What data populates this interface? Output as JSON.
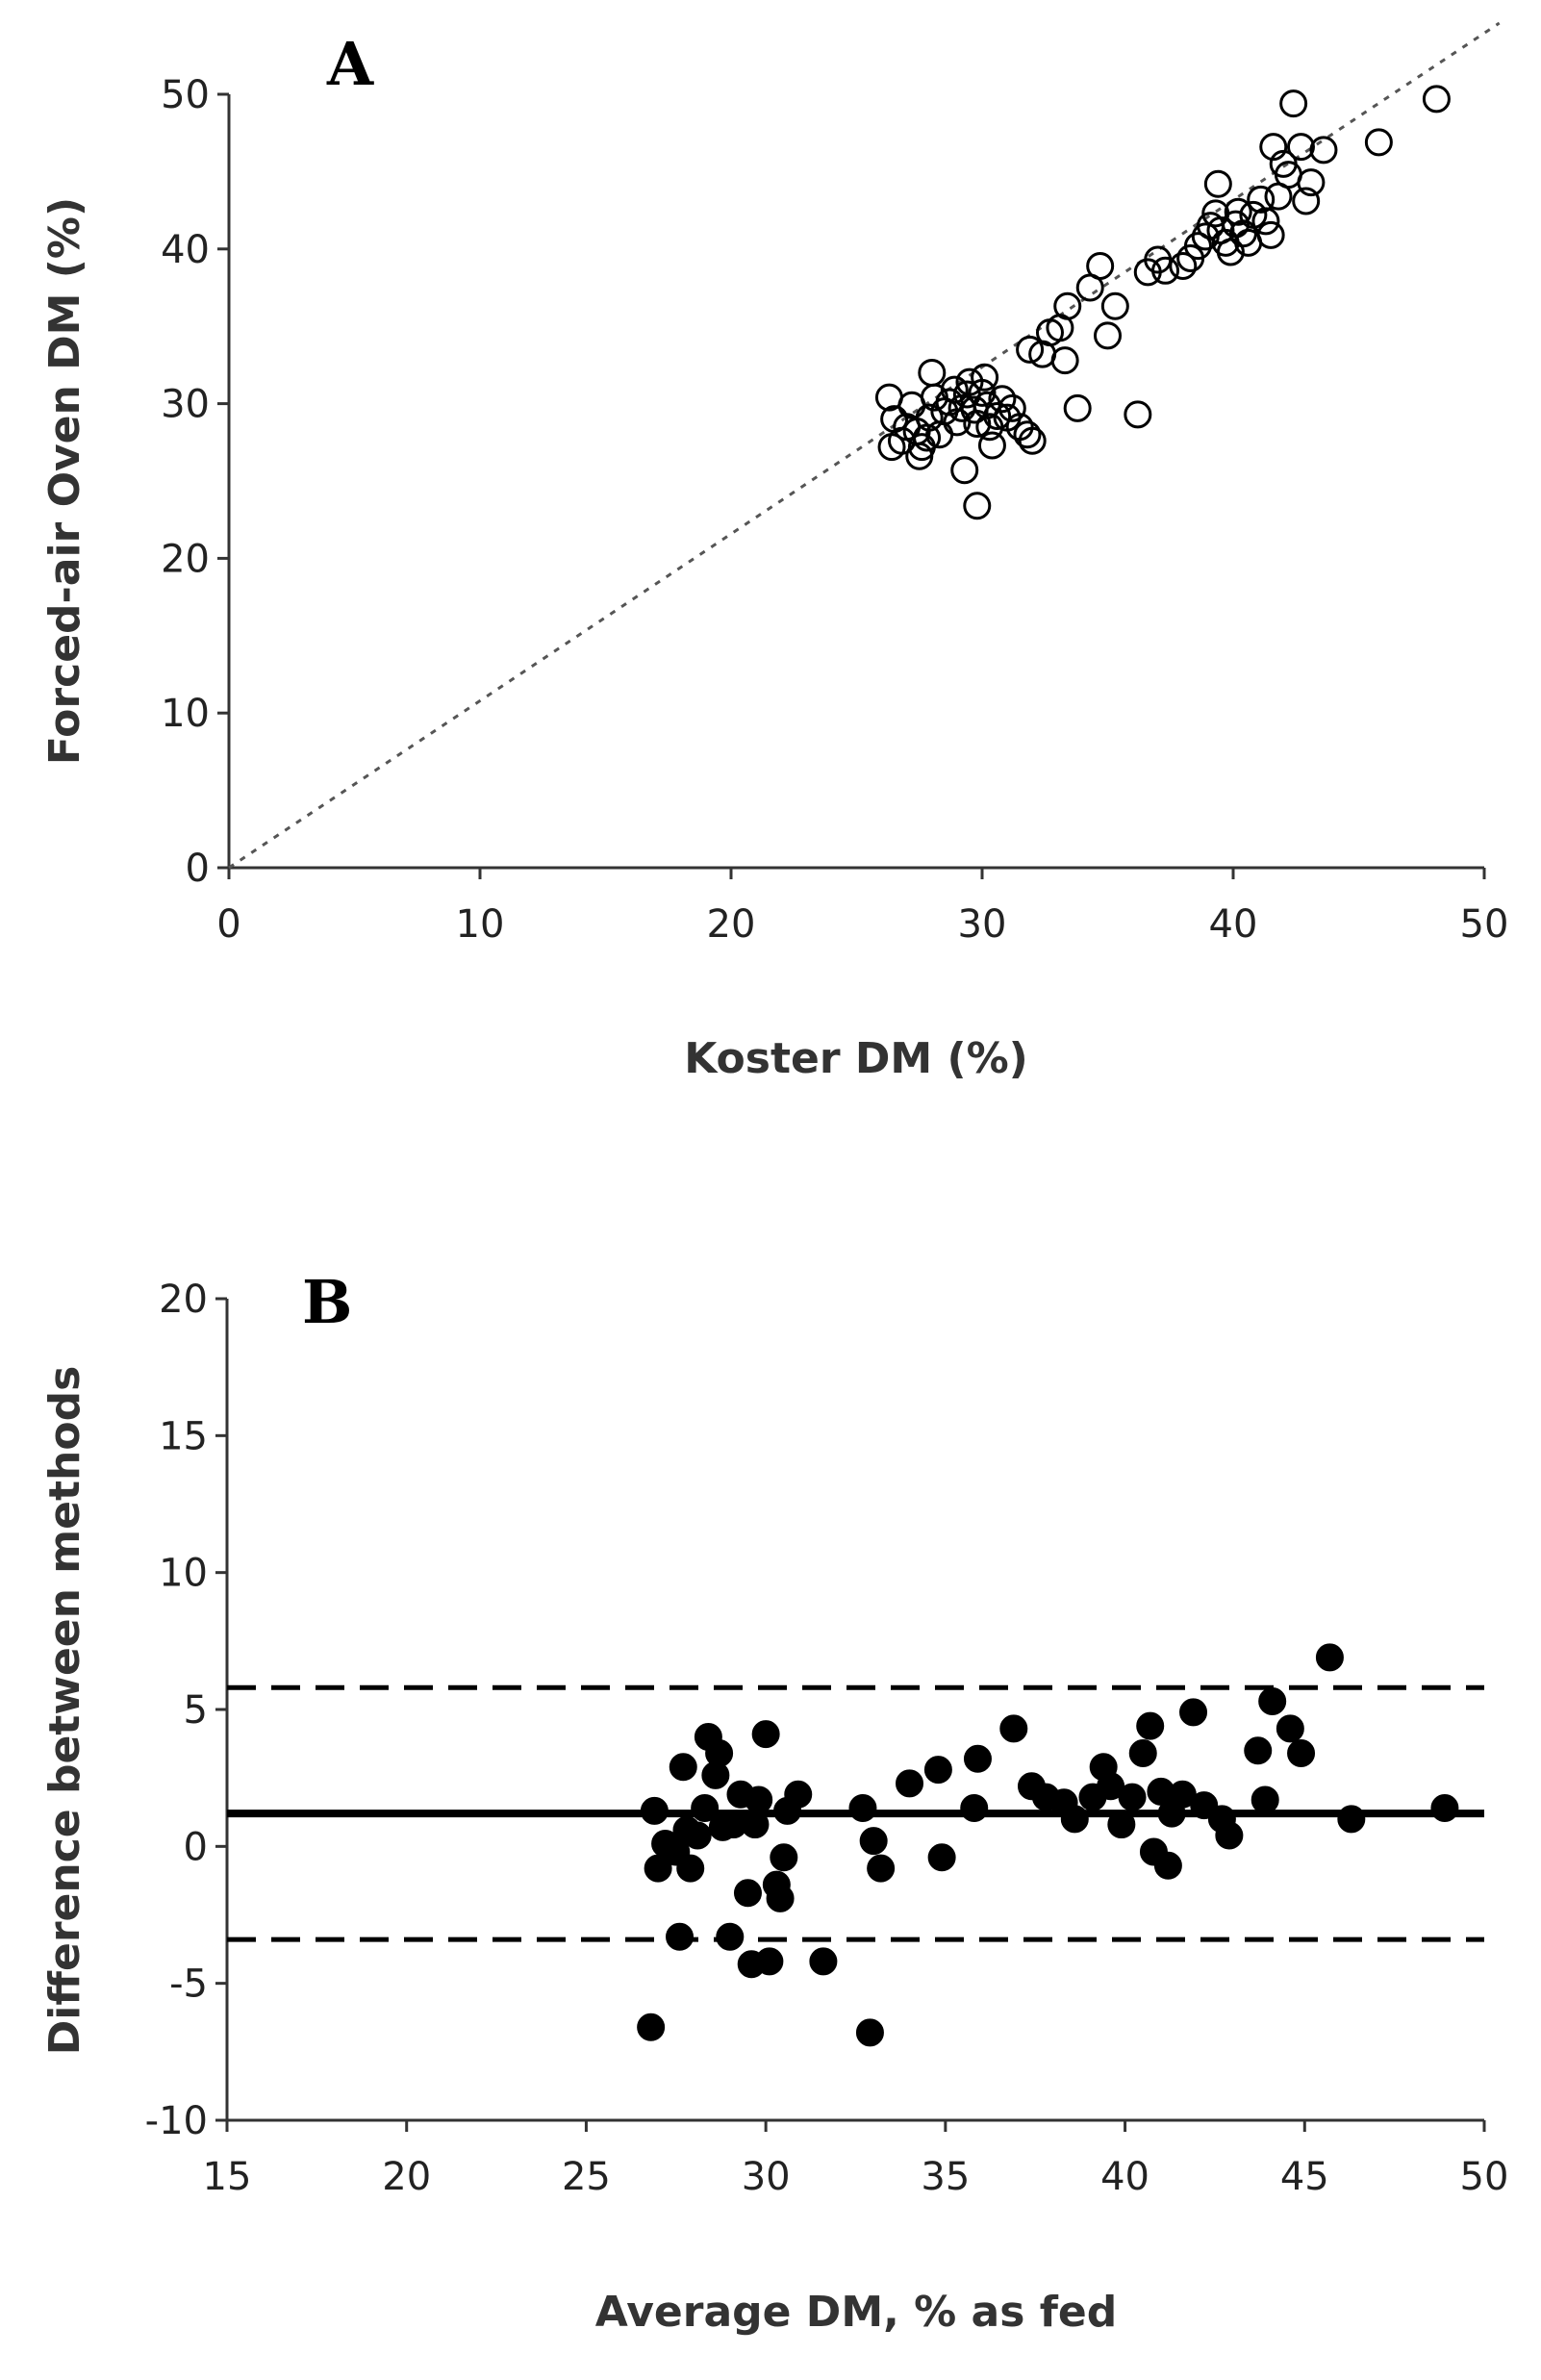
{
  "chart_data": [
    {
      "id": "A",
      "type": "scatter",
      "panel_label": "A",
      "title": "",
      "xlabel": "Koster DM (%)",
      "ylabel": "Forced-air Oven DM (%)",
      "xlim": [
        0,
        50
      ],
      "ylim": [
        0,
        50
      ],
      "xticks": [
        0,
        10,
        20,
        30,
        40,
        50
      ],
      "yticks": [
        0,
        10,
        20,
        30,
        40,
        50
      ],
      "grid": false,
      "marker": "open-circle",
      "reference_line": {
        "type": "identity",
        "style": "dotted",
        "from": [
          0,
          0
        ],
        "to": [
          50.6,
          54.6
        ]
      },
      "points": [
        [
          26.3,
          30.4
        ],
        [
          26.5,
          29.0
        ],
        [
          26.4,
          27.2
        ],
        [
          26.8,
          27.6
        ],
        [
          27.0,
          28.5
        ],
        [
          27.2,
          29.9
        ],
        [
          27.4,
          28.2
        ],
        [
          27.5,
          26.6
        ],
        [
          27.6,
          27.2
        ],
        [
          27.8,
          27.8
        ],
        [
          27.9,
          29.1
        ],
        [
          28.0,
          32.0
        ],
        [
          28.1,
          30.4
        ],
        [
          28.3,
          28.0
        ],
        [
          28.5,
          29.5
        ],
        [
          28.7,
          30.1
        ],
        [
          28.9,
          30.9
        ],
        [
          29.0,
          28.8
        ],
        [
          29.2,
          29.7
        ],
        [
          29.3,
          25.7
        ],
        [
          29.4,
          30.6
        ],
        [
          29.5,
          31.4
        ],
        [
          29.7,
          29.6
        ],
        [
          29.8,
          28.7
        ],
        [
          29.8,
          23.4
        ],
        [
          30.0,
          30.7
        ],
        [
          30.1,
          31.7
        ],
        [
          30.2,
          29.9
        ],
        [
          30.3,
          28.5
        ],
        [
          30.4,
          27.3
        ],
        [
          30.6,
          29.2
        ],
        [
          30.8,
          30.3
        ],
        [
          31.0,
          29.1
        ],
        [
          31.2,
          29.7
        ],
        [
          31.5,
          28.5
        ],
        [
          31.8,
          28.0
        ],
        [
          32.0,
          27.6
        ],
        [
          31.9,
          33.5
        ],
        [
          32.4,
          33.2
        ],
        [
          32.7,
          34.6
        ],
        [
          33.1,
          34.9
        ],
        [
          33.3,
          32.8
        ],
        [
          33.4,
          36.3
        ],
        [
          33.8,
          29.7
        ],
        [
          34.3,
          37.5
        ],
        [
          34.7,
          38.9
        ],
        [
          35.0,
          34.4
        ],
        [
          35.3,
          36.3
        ],
        [
          36.2,
          29.3
        ],
        [
          36.6,
          38.5
        ],
        [
          37.0,
          39.3
        ],
        [
          37.3,
          38.6
        ],
        [
          38.0,
          38.9
        ],
        [
          38.3,
          39.4
        ],
        [
          38.6,
          40.2
        ],
        [
          38.9,
          40.8
        ],
        [
          39.1,
          41.5
        ],
        [
          39.3,
          42.3
        ],
        [
          39.5,
          41.2
        ],
        [
          39.4,
          44.2
        ],
        [
          39.7,
          40.4
        ],
        [
          39.9,
          39.8
        ],
        [
          40.1,
          41.6
        ],
        [
          40.2,
          42.4
        ],
        [
          40.4,
          41.0
        ],
        [
          40.6,
          40.4
        ],
        [
          40.8,
          42.2
        ],
        [
          41.1,
          43.2
        ],
        [
          41.3,
          41.8
        ],
        [
          41.5,
          40.9
        ],
        [
          41.6,
          46.6
        ],
        [
          41.8,
          43.4
        ],
        [
          42.0,
          45.5
        ],
        [
          42.2,
          44.8
        ],
        [
          42.4,
          49.4
        ],
        [
          42.7,
          46.6
        ],
        [
          42.9,
          43.1
        ],
        [
          43.1,
          44.3
        ],
        [
          43.6,
          46.4
        ],
        [
          45.8,
          46.9
        ],
        [
          48.1,
          49.7
        ]
      ]
    },
    {
      "id": "B",
      "type": "scatter",
      "panel_label": "B",
      "title": "",
      "xlabel": "Average DM, % as fed",
      "ylabel": "Difference between methods",
      "xlim": [
        15,
        50
      ],
      "ylim": [
        -10,
        20
      ],
      "xticks": [
        15,
        20,
        25,
        30,
        35,
        40,
        45,
        50
      ],
      "yticks": [
        -10,
        -5,
        0,
        5,
        10,
        15,
        20
      ],
      "grid": false,
      "marker": "filled-circle",
      "reference_lines": [
        {
          "name": "mean difference",
          "value": 1.2,
          "style": "solid"
        },
        {
          "name": "upper limit of agreement",
          "value": 5.8,
          "style": "dashed"
        },
        {
          "name": "lower limit of agreement",
          "value": -3.4,
          "style": "dashed"
        }
      ],
      "points": [
        [
          26.8,
          -6.6
        ],
        [
          26.9,
          1.3
        ],
        [
          27.0,
          -0.8
        ],
        [
          27.2,
          0.1
        ],
        [
          27.5,
          -0.2
        ],
        [
          27.6,
          -3.3
        ],
        [
          27.7,
          2.9
        ],
        [
          27.8,
          0.6
        ],
        [
          27.9,
          -0.8
        ],
        [
          28.1,
          0.4
        ],
        [
          28.3,
          1.4
        ],
        [
          28.4,
          4.0
        ],
        [
          28.6,
          2.6
        ],
        [
          28.7,
          3.4
        ],
        [
          28.8,
          0.7
        ],
        [
          29.0,
          -3.3
        ],
        [
          29.1,
          0.8
        ],
        [
          29.3,
          1.9
        ],
        [
          29.5,
          -1.7
        ],
        [
          29.6,
          -4.3
        ],
        [
          29.7,
          0.8
        ],
        [
          29.8,
          1.7
        ],
        [
          30.0,
          4.1
        ],
        [
          30.1,
          -4.2
        ],
        [
          30.3,
          -1.4
        ],
        [
          30.4,
          -1.9
        ],
        [
          30.5,
          -0.4
        ],
        [
          30.6,
          1.3
        ],
        [
          30.9,
          1.9
        ],
        [
          31.6,
          -4.2
        ],
        [
          32.7,
          1.4
        ],
        [
          32.9,
          -6.8
        ],
        [
          33.0,
          0.2
        ],
        [
          33.2,
          -0.8
        ],
        [
          34.0,
          2.3
        ],
        [
          34.8,
          2.8
        ],
        [
          34.9,
          -0.4
        ],
        [
          35.8,
          1.4
        ],
        [
          35.9,
          3.2
        ],
        [
          36.9,
          4.3
        ],
        [
          37.4,
          2.2
        ],
        [
          37.8,
          1.8
        ],
        [
          38.3,
          1.6
        ],
        [
          38.6,
          1.0
        ],
        [
          39.1,
          1.8
        ],
        [
          39.4,
          2.9
        ],
        [
          39.6,
          2.2
        ],
        [
          39.9,
          0.8
        ],
        [
          40.2,
          1.8
        ],
        [
          40.5,
          3.4
        ],
        [
          40.7,
          4.4
        ],
        [
          40.8,
          -0.2
        ],
        [
          41.0,
          2.0
        ],
        [
          41.2,
          -0.7
        ],
        [
          41.3,
          1.2
        ],
        [
          41.6,
          1.9
        ],
        [
          41.9,
          4.9
        ],
        [
          42.2,
          1.5
        ],
        [
          42.7,
          1.0
        ],
        [
          42.9,
          0.4
        ],
        [
          43.7,
          3.5
        ],
        [
          43.9,
          1.7
        ],
        [
          44.1,
          5.3
        ],
        [
          44.6,
          4.3
        ],
        [
          44.9,
          3.4
        ],
        [
          45.7,
          6.9
        ],
        [
          46.3,
          1.0
        ],
        [
          48.9,
          1.4
        ]
      ]
    }
  ]
}
